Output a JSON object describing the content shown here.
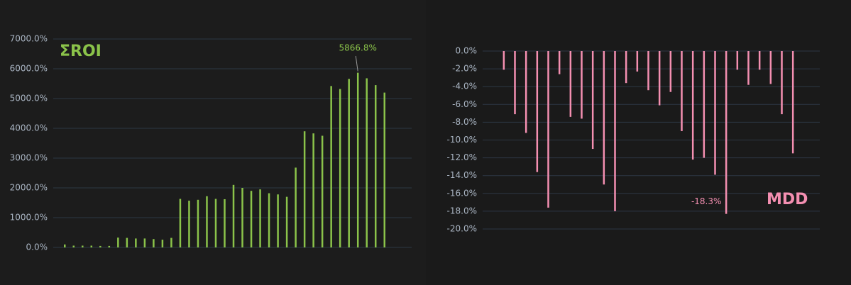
{
  "chart_data": [
    {
      "type": "bar",
      "title": "ΣROI",
      "color": "#8bc34a",
      "grid": true,
      "categories": [
        null,
        null,
        null,
        null,
        null,
        null,
        null,
        null,
        null,
        null,
        null,
        null,
        null,
        null,
        null,
        null,
        null,
        null,
        null,
        null,
        null,
        null,
        null,
        null,
        null,
        null,
        null,
        null,
        null,
        null,
        null,
        null,
        null,
        null,
        null,
        null,
        null
      ],
      "values": [
        100,
        60,
        60,
        60,
        50,
        50,
        330,
        320,
        300,
        300,
        280,
        260,
        320,
        1630,
        1570,
        1600,
        1720,
        1630,
        1620,
        2100,
        2000,
        1900,
        1950,
        1820,
        1780,
        1700,
        2680,
        3900,
        3830,
        3750,
        5420,
        5320,
        5660,
        5866.8,
        5680,
        5450,
        5200
      ],
      "ylim": [
        0,
        7000
      ],
      "yticks": [
        {
          "value": 0,
          "label": "0.0%"
        },
        {
          "value": 1000,
          "label": "1000.0%"
        },
        {
          "value": 2000,
          "label": "2000.0%"
        },
        {
          "value": 3000,
          "label": "3000.0%"
        },
        {
          "value": 4000,
          "label": "4000.0%"
        },
        {
          "value": 5000,
          "label": "5000.0%"
        },
        {
          "value": 6000,
          "label": "6000.0%"
        },
        {
          "value": 7000,
          "label": "7000.0%"
        }
      ],
      "annotation": "5866.8%"
    },
    {
      "type": "bar",
      "title": "MDD",
      "color": "#f48fb1",
      "grid": true,
      "categories": [
        null,
        null,
        null,
        null,
        null,
        null,
        null,
        null,
        null,
        null,
        null,
        null,
        null,
        null,
        null,
        null,
        null,
        null,
        null,
        null,
        null,
        null,
        null,
        null,
        null,
        null,
        null
      ],
      "values": [
        -2.1,
        -7.1,
        -9.2,
        -13.6,
        -17.6,
        -2.6,
        -7.4,
        -7.6,
        -11.0,
        -15.0,
        -18.0,
        -3.6,
        -2.3,
        -4.4,
        -6.1,
        -4.6,
        -9.0,
        -12.2,
        -12.0,
        -13.9,
        -18.3,
        -2.1,
        -3.8,
        -2.1,
        -3.7,
        -7.1,
        -11.5
      ],
      "ylim": [
        -20,
        0
      ],
      "yticks": [
        {
          "value": 0,
          "label": "0.0%"
        },
        {
          "value": -2,
          "label": "-2.0%"
        },
        {
          "value": -4,
          "label": "-4.0%"
        },
        {
          "value": -6,
          "label": "-6.0%"
        },
        {
          "value": -8,
          "label": "-8.0%"
        },
        {
          "value": -10,
          "label": "-10.0%"
        },
        {
          "value": -12,
          "label": "-12.0%"
        },
        {
          "value": -14,
          "label": "-14.0%"
        },
        {
          "value": -16,
          "label": "-16.0%"
        },
        {
          "value": -18,
          "label": "-18.0%"
        },
        {
          "value": -20,
          "label": "-20.0%"
        }
      ],
      "annotation": "-18.3%"
    }
  ]
}
